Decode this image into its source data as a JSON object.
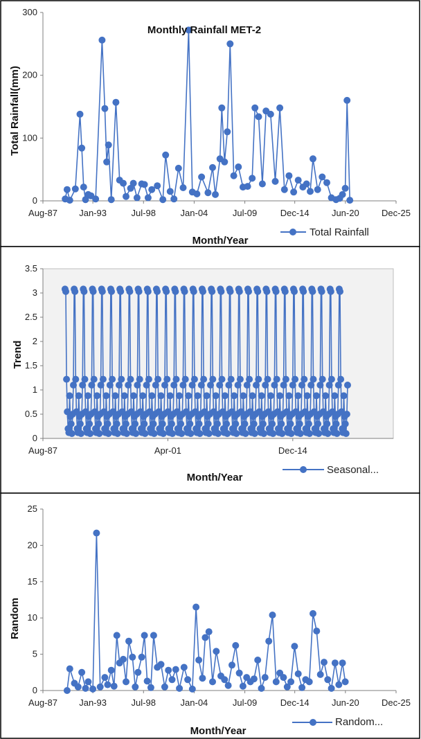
{
  "chart_data": [
    {
      "type": "line",
      "title": "Monthly Rainfall MET-2",
      "xlabel": "Month/Year",
      "ylabel": "Total Rainfall(mm)",
      "ylim": [
        0,
        300
      ],
      "yticks": [
        "0",
        "100",
        "200",
        "300"
      ],
      "xticks": [
        "Aug-87",
        "Jan-93",
        "Jul-98",
        "Jan-04",
        "Jul-09",
        "Dec-14",
        "Jun-20",
        "Dec-25"
      ],
      "xtick_values": [
        1987.58,
        1993.0,
        1998.5,
        2004.0,
        2009.5,
        2014.92,
        2020.42,
        2025.92
      ],
      "xlim": [
        1987.58,
        2025.92
      ],
      "legend": "bottom-right",
      "grid": false,
      "series": [
        {
          "name": "Total Rainfall",
          "color": "#4472C4",
          "x": [
            1990.0,
            1990.2,
            1990.5,
            1991.1,
            1991.6,
            1991.8,
            1992.0,
            1992.2,
            1992.5,
            1992.8,
            1993.3,
            1994.0,
            1994.3,
            1994.5,
            1994.7,
            1995.0,
            1995.5,
            1995.9,
            1996.3,
            1996.6,
            1997.1,
            1997.4,
            1997.8,
            1998.3,
            1998.6,
            1999.0,
            1999.4,
            2000.0,
            2000.6,
            2000.9,
            2001.4,
            2001.8,
            2002.3,
            2002.8,
            2003.4,
            2003.8,
            2004.3,
            2004.8,
            2005.5,
            2006.0,
            2006.3,
            2006.8,
            2007.0,
            2007.3,
            2007.6,
            2007.9,
            2008.3,
            2008.8,
            2009.3,
            2009.8,
            2010.3,
            2010.6,
            2011.0,
            2011.4,
            2011.8,
            2012.3,
            2012.8,
            2013.3,
            2013.8,
            2014.3,
            2014.8,
            2015.3,
            2015.8,
            2016.2,
            2016.6,
            2016.9,
            2017.4,
            2017.9,
            2018.4,
            2018.9,
            2019.4,
            2019.8,
            2020.1,
            2020.4,
            2020.6,
            2020.9
          ],
          "y": [
            3,
            18,
            1,
            19,
            138,
            84,
            22,
            2,
            10,
            8,
            3,
            256,
            147,
            62,
            89,
            2,
            157,
            33,
            28,
            7,
            20,
            28,
            5,
            27,
            26,
            5,
            18,
            24,
            2,
            73,
            15,
            3,
            52,
            21,
            272,
            14,
            11,
            38,
            13,
            53,
            10,
            67,
            148,
            62,
            110,
            250,
            40,
            54,
            22,
            23,
            36,
            148,
            134,
            27,
            143,
            138,
            31,
            148,
            18,
            40,
            14,
            33,
            22,
            27,
            15,
            67,
            18,
            38,
            29,
            5,
            2,
            4,
            10,
            20,
            160,
            1
          ]
        }
      ]
    },
    {
      "type": "line",
      "title": "",
      "xlabel": "Month/Year",
      "ylabel": "Trend",
      "ylim": [
        0,
        3.5
      ],
      "yticks": [
        "0",
        "0.5",
        "1",
        "1.5",
        "2",
        "2.5",
        "3",
        "3.5"
      ],
      "xticks": [
        "Aug-87",
        "Apr-01",
        "Dec-14"
      ],
      "xtick_values": [
        1987.58,
        2001.25,
        2014.92
      ],
      "xlim": [
        1987.58,
        2025.92
      ],
      "legend": "bottom-right",
      "grid": false,
      "series": [
        {
          "name": "Seasonal...",
          "color": "#4472C4",
          "x_start": 1990.0,
          "x_step": 0.08333,
          "cycles": 31,
          "cycle": [
            3.08,
            3.03,
            1.22,
            0.55,
            0.2,
            0.12,
            0.88,
            0.45,
            0.3,
            0.1,
            0.5,
            1.1
          ]
        }
      ]
    },
    {
      "type": "line",
      "title": "",
      "xlabel": "Month/Year",
      "ylabel": "Random",
      "ylim": [
        0,
        25
      ],
      "yticks": [
        "0",
        "5",
        "10",
        "15",
        "20",
        "25"
      ],
      "xticks": [
        "Aug-87",
        "Jan-93",
        "Jul-98",
        "Jan-04",
        "Jul-09",
        "Dec-14",
        "Jun-20",
        "Dec-25"
      ],
      "xtick_values": [
        1987.58,
        1993.0,
        1998.5,
        2004.0,
        2009.5,
        2014.92,
        2020.42,
        2025.92
      ],
      "xlim": [
        1987.58,
        2025.92
      ],
      "legend": "bottom-right",
      "grid": false,
      "series": [
        {
          "name": "Random...",
          "color": "#4472C4",
          "x": [
            1990.2,
            1990.5,
            1991.0,
            1991.4,
            1991.8,
            1992.2,
            1992.5,
            1993.0,
            1993.4,
            1993.8,
            1994.3,
            1994.6,
            1995.0,
            1995.3,
            1995.6,
            1995.9,
            1996.3,
            1996.6,
            1996.9,
            1997.3,
            1997.6,
            1997.9,
            1998.3,
            1998.6,
            1998.9,
            1999.3,
            1999.6,
            2000.0,
            2000.4,
            2000.8,
            2001.2,
            2001.6,
            2002.0,
            2002.4,
            2002.9,
            2003.3,
            2003.8,
            2004.2,
            2004.5,
            2004.9,
            2005.2,
            2005.6,
            2006.0,
            2006.4,
            2006.9,
            2007.3,
            2007.7,
            2008.1,
            2008.5,
            2008.9,
            2009.3,
            2009.7,
            2010.1,
            2010.5,
            2010.9,
            2011.3,
            2011.7,
            2012.1,
            2012.5,
            2012.9,
            2013.3,
            2013.7,
            2014.1,
            2014.5,
            2014.9,
            2015.3,
            2015.7,
            2016.1,
            2016.5,
            2016.9,
            2017.3,
            2017.7,
            2018.1,
            2018.5,
            2018.9,
            2019.3,
            2019.7,
            2020.1,
            2020.4
          ],
          "y": [
            0,
            3,
            1,
            0.5,
            2.5,
            0.3,
            1.2,
            0.2,
            21.7,
            0.5,
            1.8,
            0.8,
            2.8,
            0.6,
            7.6,
            3.8,
            4.3,
            1.2,
            6.8,
            4.6,
            0.5,
            2.5,
            4.6,
            7.6,
            1.3,
            0.4,
            7.6,
            3.2,
            3.6,
            0.5,
            2.8,
            1.5,
            2.9,
            0.3,
            3.2,
            1.5,
            0.2,
            11.5,
            4.2,
            1.7,
            7.3,
            8.1,
            1.2,
            5.4,
            2.0,
            1.5,
            0.7,
            3.5,
            6.2,
            2.4,
            0.6,
            1.8,
            1.2,
            1.6,
            4.2,
            0.3,
            1.8,
            6.8,
            10.4,
            1.2,
            2.4,
            1.8,
            0.5,
            1.2,
            6.1,
            2.3,
            0.4,
            1.5,
            1.2,
            10.6,
            8.2,
            2.2,
            3.9,
            1.5,
            0.3,
            3.8,
            0.8,
            3.8,
            1.2
          ]
        }
      ]
    }
  ]
}
